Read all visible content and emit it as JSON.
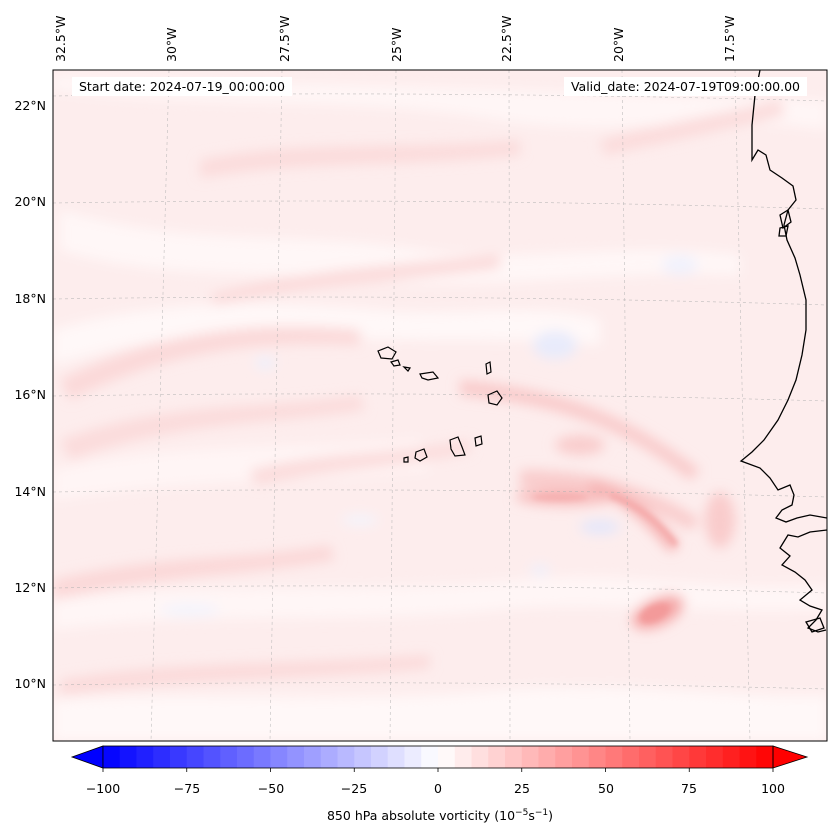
{
  "header": {
    "start_date": "Start date: 2024-07-19_00:00:00",
    "valid_date": "Valid_date: 2024-07-19T09:00:00.00"
  },
  "map": {
    "projection": "oblique conic, rotated graticule",
    "longitude_labels": [
      "32.5°W",
      "30°W",
      "27.5°W",
      "25°W",
      "22.5°W",
      "20°W",
      "17.5°W"
    ],
    "latitude_labels": [
      "22°N",
      "20°N",
      "18°N",
      "16°N",
      "14°N",
      "12°N",
      "10°N"
    ],
    "features": [
      "Cape Verde islands",
      "West African coastline (Senegal / Gambia / Guinea-Bissau)"
    ],
    "dominant_colors": {
      "background_field": "#fde8e8",
      "strong_positive": "#f7a9a9",
      "negative": "#e6e9fb"
    }
  },
  "colorbar": {
    "label_main": "850 hPa absolute vorticity (10",
    "label_exp1": "−5",
    "label_mid": "s",
    "label_exp2": "−1",
    "label_end": ")",
    "ticks": [
      "−100",
      "−75",
      "−50",
      "−25",
      "0",
      "25",
      "50",
      "75",
      "100"
    ],
    "min": -100,
    "max": 100,
    "levels": 40,
    "colormap": "bwr",
    "extend": "both",
    "low_color": "#0000ff",
    "mid_color": "#ffffff",
    "high_color": "#ff0000"
  }
}
